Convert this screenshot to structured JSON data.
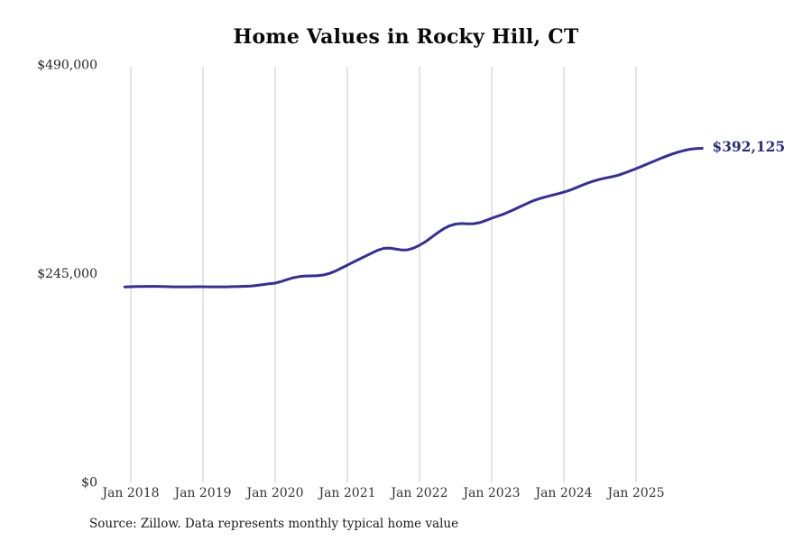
{
  "title": "Home Values in Rocky Hill, CT",
  "source_note": "Source: Zillow. Data represents monthly typical home value",
  "colors": {
    "line": "#322f9b",
    "end_label": "#2a2d7f",
    "gridline": "#c8c8c8",
    "x_tick_text": "#333333",
    "y_tick_text": "#262626",
    "title_text": "#0a0a0a",
    "background": "#ffffff"
  },
  "chart_data": {
    "type": "line",
    "title": "Home Values in Rocky Hill, CT",
    "xlabel": "",
    "ylabel": "",
    "ylim": [
      0,
      490000
    ],
    "grid": "vertical-only",
    "legend": "none",
    "latest_value_label": "$392,125",
    "latest_value": 392125,
    "y_ticks": [
      {
        "label": "$490,000",
        "value": 490000
      },
      {
        "label": "$245,000",
        "value": 245000
      },
      {
        "label": "$0",
        "value": 0
      }
    ],
    "x_ticks": [
      {
        "label": "Jan 2018",
        "month": "2018-01"
      },
      {
        "label": "Jan 2019",
        "month": "2019-01"
      },
      {
        "label": "Jan 2020",
        "month": "2020-01"
      },
      {
        "label": "Jan 2021",
        "month": "2021-01"
      },
      {
        "label": "Jan 2022",
        "month": "2022-01"
      },
      {
        "label": "Jan 2023",
        "month": "2023-01"
      },
      {
        "label": "Jan 2024",
        "month": "2024-01"
      },
      {
        "label": "Jan 2025",
        "month": "2025-01"
      }
    ],
    "series": [
      {
        "name": "Monthly typical home value (Zillow ZHVI)",
        "x_start": "2017-12",
        "x_step_months": 1,
        "values": [
          229400,
          229700,
          229900,
          230000,
          230100,
          230100,
          230000,
          229800,
          229600,
          229500,
          229500,
          229600,
          229700,
          229700,
          229600,
          229500,
          229500,
          229600,
          229800,
          230000,
          230200,
          230400,
          231200,
          232200,
          233100,
          233900,
          235800,
          238000,
          240200,
          241500,
          242200,
          242400,
          242600,
          243400,
          245200,
          248000,
          251500,
          255000,
          258600,
          262000,
          265500,
          269000,
          272300,
          274600,
          275100,
          274000,
          272800,
          272900,
          275000,
          278300,
          282600,
          287600,
          292900,
          297700,
          301200,
          303200,
          303800,
          303500,
          303600,
          304900,
          307300,
          310100,
          312500,
          315000,
          318000,
          321200,
          324500,
          327800,
          330800,
          333200,
          335200,
          337000,
          338800,
          340700,
          343000,
          345800,
          348700,
          351500,
          353800,
          355800,
          357400,
          358800,
          360500,
          362900,
          365500,
          368300,
          371100,
          374100,
          377100,
          380000,
          382800,
          385400,
          387700,
          389600,
          391000,
          391800,
          392125
        ]
      }
    ]
  }
}
